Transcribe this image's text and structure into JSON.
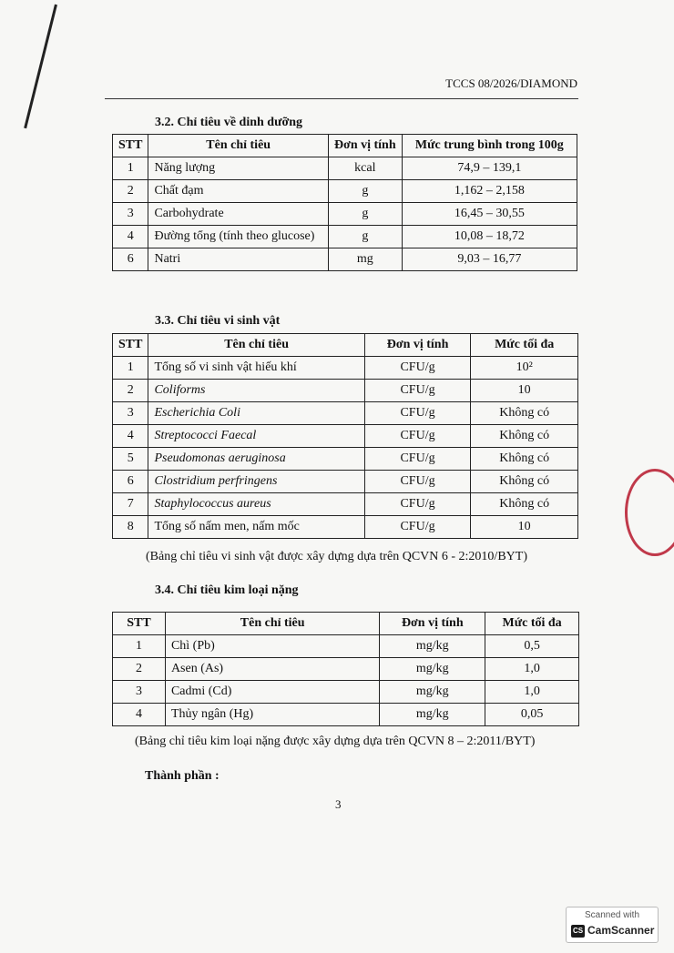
{
  "header": {
    "code": "TCCS 08/2026/DIAMOND"
  },
  "nutrition": {
    "title": "3.2.  Chỉ tiêu về dinh dưỡng",
    "columns": [
      "STT",
      "Tên chỉ tiêu",
      "Đơn vị tính",
      "Mức trung bình trong 100g"
    ],
    "rows": [
      [
        "1",
        "Năng lượng",
        "kcal",
        "74,9 – 139,1"
      ],
      [
        "2",
        "Chất đạm",
        "g",
        "1,162 – 2,158"
      ],
      [
        "3",
        "Carbohydrate",
        "g",
        "16,45 – 30,55"
      ],
      [
        "4",
        "Đường tổng (tính theo glucose)",
        "g",
        "10,08 – 18,72"
      ],
      [
        "6",
        "Natri",
        "mg",
        "9,03 – 16,77"
      ]
    ]
  },
  "micro": {
    "title": "3.3. Chỉ tiêu vi sinh vật",
    "columns": [
      "STT",
      "Tên chỉ tiêu",
      "Đơn vị tính",
      "Mức tối đa"
    ],
    "rows": [
      [
        "1",
        "Tổng số vi sinh vật hiếu khí",
        "CFU/g",
        "10²"
      ],
      [
        "2",
        "Coliforms",
        "CFU/g",
        "10"
      ],
      [
        "3",
        "Escherichia Coli",
        "CFU/g",
        "Không có"
      ],
      [
        "4",
        "Streptococci Faecal",
        "CFU/g",
        "Không có"
      ],
      [
        "5",
        "Pseudomonas aeruginosa",
        "CFU/g",
        "Không có"
      ],
      [
        "6",
        "Clostridium perfringens",
        "CFU/g",
        "Không có"
      ],
      [
        "7",
        "Staphylococcus aureus",
        "CFU/g",
        "Không có"
      ],
      [
        "8",
        "Tổng số nấm men, nấm mốc",
        "CFU/g",
        "10"
      ]
    ],
    "italic_rows": [
      1,
      2,
      3,
      4,
      5,
      6
    ],
    "note": "(Bảng chỉ tiêu vi sinh vật được xây dựng dựa trên QCVN 6 - 2:2010/BYT)"
  },
  "metals": {
    "title": "3.4. Chỉ tiêu kim loại nặng",
    "columns": [
      "STT",
      "Tên chỉ tiêu",
      "Đơn vị tính",
      "Mức tối đa"
    ],
    "rows": [
      [
        "1",
        "Chì (Pb)",
        "mg/kg",
        "0,5"
      ],
      [
        "2",
        "Asen (As)",
        "mg/kg",
        "1,0"
      ],
      [
        "3",
        "Cadmi (Cd)",
        "mg/kg",
        "1,0"
      ],
      [
        "4",
        "Thủy ngân (Hg)",
        "mg/kg",
        "0,05"
      ]
    ],
    "note": "(Bảng chỉ tiêu kim loại nặng được xây dựng dựa trên QCVN 8 – 2:2011/BYT)"
  },
  "ingredients_label": "Thành phần :",
  "page_number": "3",
  "watermark": {
    "line1": "Scanned with",
    "line2": "CamScanner",
    "logo": "CS"
  },
  "stamp_color": "#c0394a"
}
